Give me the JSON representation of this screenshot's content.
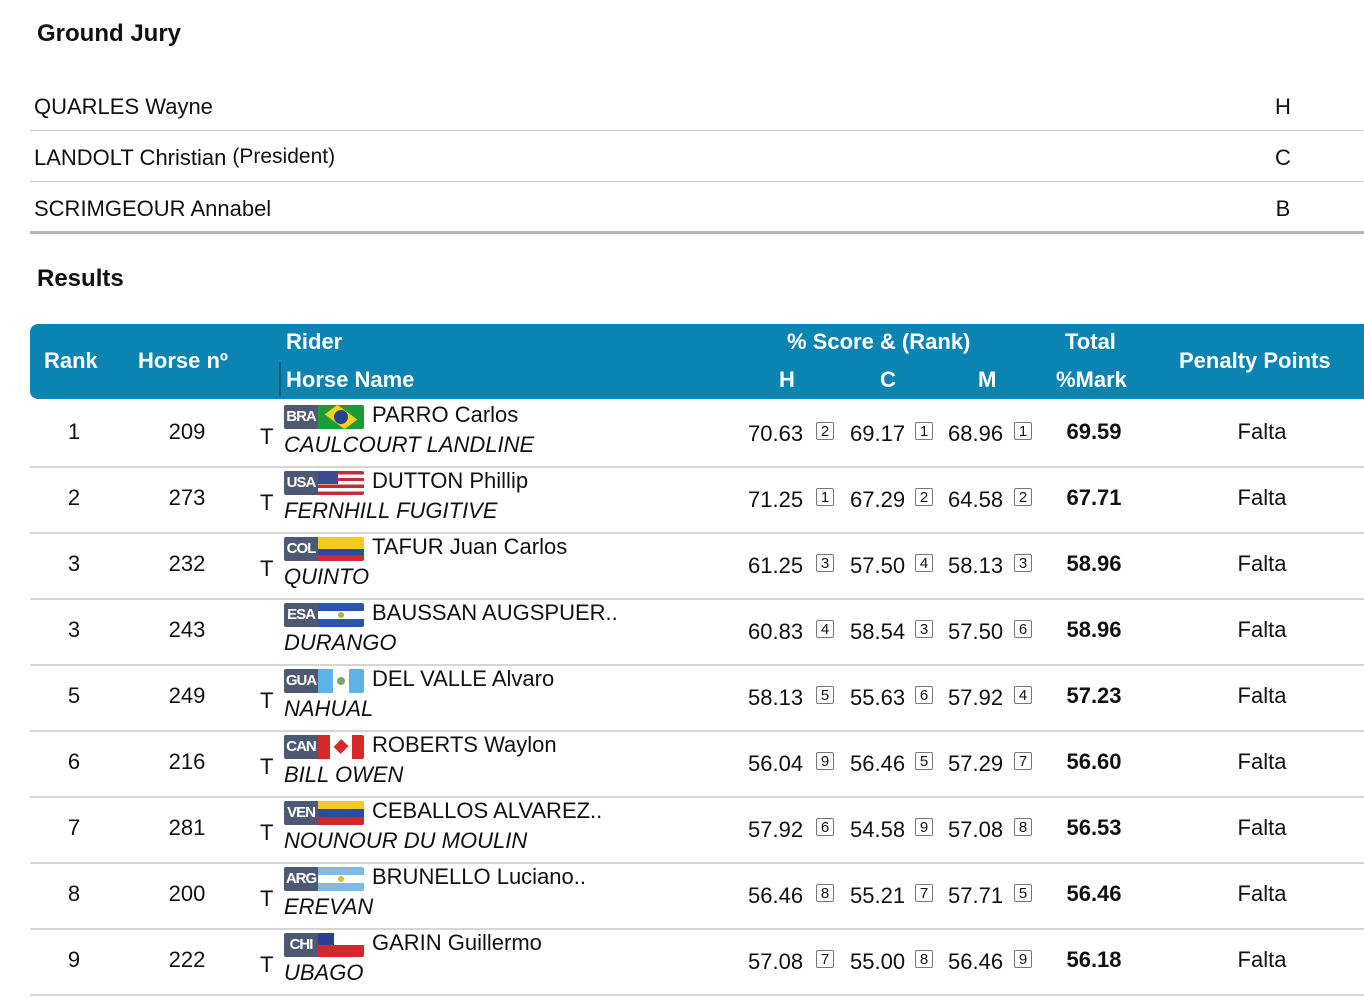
{
  "ground_jury": {
    "title": "Ground Jury",
    "members": [
      {
        "name": "QUARLES Wayne",
        "role": "",
        "position": "H"
      },
      {
        "name": "LANDOLT Christian",
        "role": "(President)",
        "position": "C"
      },
      {
        "name": "SCRIMGEOUR Annabel",
        "role": "",
        "position": "B"
      }
    ]
  },
  "results": {
    "title": "Results",
    "headers": {
      "rank": "Rank",
      "horse_no": "Horse nº",
      "rider": "Rider",
      "horse_name": "Horse Name",
      "score": "% Score & (Rank)",
      "h": "H",
      "c": "C",
      "m": "M",
      "total": "Total",
      "mark": "%Mark",
      "penalty": "Penalty Points"
    },
    "rows": [
      {
        "rank": "1",
        "horse_no": "209",
        "t": "T",
        "country": "BRA",
        "rider": "PARRO Carlos",
        "horse": "CAULCOURT LANDLINE",
        "h": "70.63",
        "h_rank": "2",
        "c": "69.17",
        "c_rank": "1",
        "m": "68.96",
        "m_rank": "1",
        "total": "69.59",
        "penalty": "Falta"
      },
      {
        "rank": "2",
        "horse_no": "273",
        "t": "T",
        "country": "USA",
        "rider": "DUTTON Phillip",
        "horse": "FERNHILL FUGITIVE",
        "h": "71.25",
        "h_rank": "1",
        "c": "67.29",
        "c_rank": "2",
        "m": "64.58",
        "m_rank": "2",
        "total": "67.71",
        "penalty": "Falta"
      },
      {
        "rank": "3",
        "horse_no": "232",
        "t": "T",
        "country": "COL",
        "rider": "TAFUR Juan Carlos",
        "horse": "QUINTO",
        "h": "61.25",
        "h_rank": "3",
        "c": "57.50",
        "c_rank": "4",
        "m": "58.13",
        "m_rank": "3",
        "total": "58.96",
        "penalty": "Falta"
      },
      {
        "rank": "3",
        "horse_no": "243",
        "t": "",
        "country": "ESA",
        "rider": "BAUSSAN AUGSPUER..",
        "horse": "DURANGO",
        "h": "60.83",
        "h_rank": "4",
        "c": "58.54",
        "c_rank": "3",
        "m": "57.50",
        "m_rank": "6",
        "total": "58.96",
        "penalty": "Falta"
      },
      {
        "rank": "5",
        "horse_no": "249",
        "t": "T",
        "country": "GUA",
        "rider": "DEL VALLE Alvaro",
        "horse": "NAHUAL",
        "h": "58.13",
        "h_rank": "5",
        "c": "55.63",
        "c_rank": "6",
        "m": "57.92",
        "m_rank": "4",
        "total": "57.23",
        "penalty": "Falta"
      },
      {
        "rank": "6",
        "horse_no": "216",
        "t": "T",
        "country": "CAN",
        "rider": "ROBERTS Waylon",
        "horse": "BILL OWEN",
        "h": "56.04",
        "h_rank": "9",
        "c": "56.46",
        "c_rank": "5",
        "m": "57.29",
        "m_rank": "7",
        "total": "56.60",
        "penalty": "Falta"
      },
      {
        "rank": "7",
        "horse_no": "281",
        "t": "T",
        "country": "VEN",
        "rider": "CEBALLOS ALVAREZ..",
        "horse": "NOUNOUR DU MOULIN",
        "h": "57.92",
        "h_rank": "6",
        "c": "54.58",
        "c_rank": "9",
        "m": "57.08",
        "m_rank": "8",
        "total": "56.53",
        "penalty": "Falta"
      },
      {
        "rank": "8",
        "horse_no": "200",
        "t": "T",
        "country": "ARG",
        "rider": "BRUNELLO Luciano..",
        "horse": "EREVAN",
        "h": "56.46",
        "h_rank": "8",
        "c": "55.21",
        "c_rank": "7",
        "m": "57.71",
        "m_rank": "5",
        "total": "56.46",
        "penalty": "Falta"
      },
      {
        "rank": "9",
        "horse_no": "222",
        "t": "T",
        "country": "CHI",
        "rider": "GARIN Guillermo",
        "horse": "UBAGO",
        "h": "57.08",
        "h_rank": "7",
        "c": "55.00",
        "c_rank": "8",
        "m": "56.46",
        "m_rank": "9",
        "total": "56.18",
        "penalty": "Falta"
      }
    ]
  },
  "colors": {
    "header_bg": "#0c84b2",
    "country_code_bg": "#4d5872"
  }
}
